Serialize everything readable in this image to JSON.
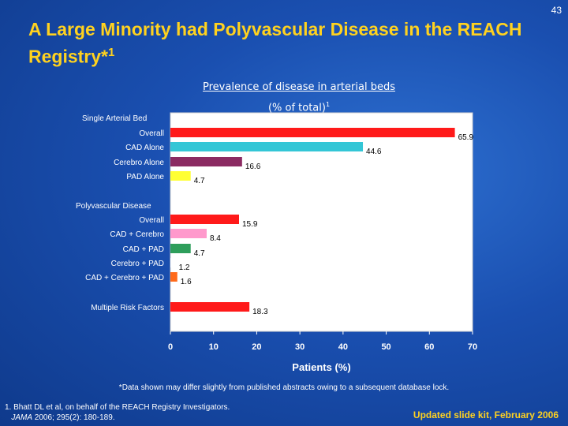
{
  "slide": {
    "number": "43",
    "title": "A Large Minority had Polyvascular Disease in the REACH Registry*",
    "title_superscript": "1",
    "footnote": "*Data shown may differ slightly from published abstracts owing to a subsequent database lock.",
    "reference_line1": "1. Bhatt DL et al, on behalf of the REACH Registry Investigators.",
    "reference_journal": "JAMA",
    "reference_rest": " 2006; 295(2): 180-189.",
    "kit_label": "Updated slide kit, February 2006"
  },
  "chart_data": {
    "type": "bar",
    "orientation": "horizontal",
    "title": "Prevalence of disease in arterial beds",
    "subtitle": "(% of total)",
    "subtitle_superscript": "1",
    "xlabel": "Patients (%)",
    "xlim": [
      0,
      70
    ],
    "xticks": [
      0,
      10,
      20,
      30,
      40,
      50,
      60,
      70
    ],
    "grid": false,
    "groups": [
      {
        "heading": "Single Arterial Bed"
      },
      {
        "heading": "Polyvascular Disease"
      }
    ],
    "bars": [
      {
        "label": "Overall",
        "value": 65.9,
        "value_label": "65.9",
        "color": "#ff1a1a",
        "group": 0
      },
      {
        "label": "CAD Alone",
        "value": 44.6,
        "value_label": "44.6",
        "color": "#33c6d6",
        "group": 0
      },
      {
        "label": "Cerebro Alone",
        "value": 16.6,
        "value_label": "16.6",
        "color": "#8b2a62",
        "group": 0
      },
      {
        "label": "PAD Alone",
        "value": 4.7,
        "value_label": "4.7",
        "color": "#ffff33",
        "group": 0
      },
      {
        "label": "Overall",
        "value": 15.9,
        "value_label": "15.9",
        "color": "#ff1a1a",
        "group": 1
      },
      {
        "label": "CAD + Cerebro",
        "value": 8.4,
        "value_label": "8.4",
        "color": "#ff99cc",
        "group": 1
      },
      {
        "label": "CAD + PAD",
        "value": 4.7,
        "value_label": "4.7",
        "color": "#2e9e5b",
        "group": 1
      },
      {
        "label": "Cerebro + PAD",
        "value": 1.2,
        "value_label": "1.2",
        "color": "#ffffff",
        "group": 1
      },
      {
        "label": "CAD + Cerebro + PAD",
        "value": 1.6,
        "value_label": "1.6",
        "color": "#ff6a1a",
        "group": 1
      },
      {
        "label": "Multiple Risk Factors",
        "value": 18.3,
        "value_label": "18.3",
        "color": "#ff1a1a",
        "group": null
      }
    ]
  }
}
